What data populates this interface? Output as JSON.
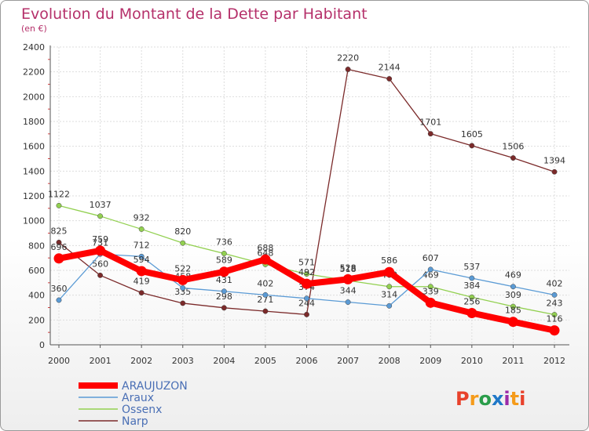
{
  "title": "Evolution du Montant de la Dette par Habitant",
  "subtitle": "(en €)",
  "logo": {
    "text": "Proxiti",
    "colors": [
      "#e8412b",
      "#f59b1a",
      "#2a9d4a",
      "#1f78c8",
      "#9b2aa8",
      "#f59b1a",
      "#e8412b"
    ]
  },
  "chart_data": {
    "type": "line",
    "x": [
      "2000",
      "2001",
      "2002",
      "2003",
      "2004",
      "2005",
      "2006",
      "2007",
      "2008",
      "2009",
      "2010",
      "2011",
      "2012"
    ],
    "ylim": [
      0,
      2400
    ],
    "yticks": [
      0,
      200,
      400,
      600,
      800,
      1000,
      1200,
      1400,
      1600,
      1800,
      2000,
      2200,
      2400
    ],
    "grid": true,
    "legend": "bottom-left",
    "series": [
      {
        "name": "ARAUJUZON",
        "color": "#ff0000",
        "values": [
          696,
          759,
          594,
          522,
          589,
          688,
          492,
          528,
          586,
          339,
          256,
          185,
          116
        ],
        "labels": [
          "696",
          "759",
          "594",
          "522",
          "589",
          "688",
          "492",
          "528",
          "586",
          "339",
          "256",
          "185",
          "116"
        ]
      },
      {
        "name": "Araux",
        "color": "#5b9bd5",
        "values": [
          360,
          731,
          712,
          458,
          431,
          402,
          374,
          344,
          314,
          607,
          537,
          469,
          402
        ],
        "labels": [
          "360",
          "731",
          "712",
          "458",
          "431",
          "402",
          "374",
          "344",
          "314",
          "607",
          "537",
          "469",
          "402"
        ]
      },
      {
        "name": "Ossenx",
        "color": "#92d050",
        "values": [
          1122,
          1037,
          932,
          820,
          736,
          648,
          571,
          518,
          469,
          469,
          384,
          309,
          243
        ],
        "labels": [
          "1122",
          "1037",
          "932",
          "820",
          "736",
          "648",
          "571",
          "518",
          "469",
          "469",
          "384",
          "309",
          "243"
        ]
      },
      {
        "name": "Narp",
        "color": "#7b2a2a",
        "values": [
          825,
          560,
          419,
          335,
          298,
          271,
          244,
          2220,
          2144,
          1701,
          1605,
          1506,
          1394
        ],
        "labels": [
          "825",
          "560",
          "419",
          "335",
          "298",
          "271",
          "244",
          "2220",
          "2144",
          "1701",
          "1605",
          "1506",
          "1394"
        ]
      }
    ]
  }
}
